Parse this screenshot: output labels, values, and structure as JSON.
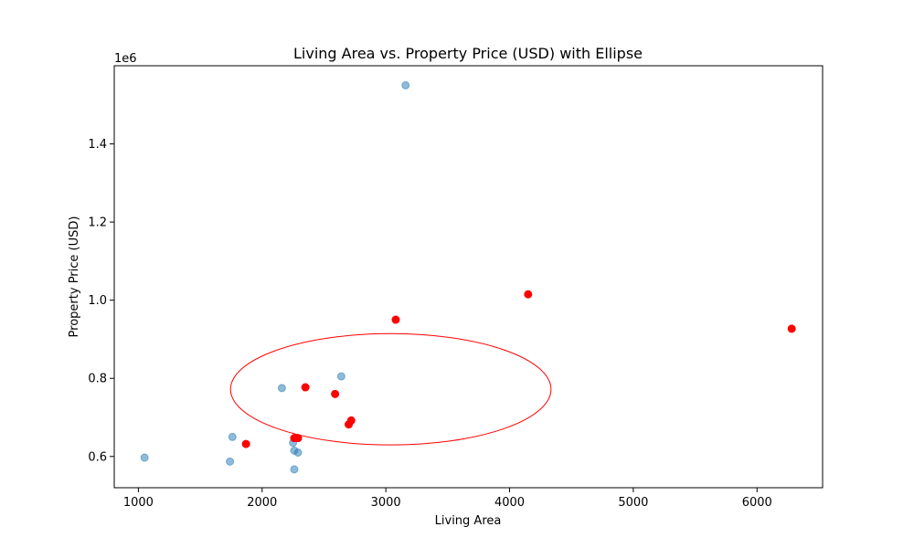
{
  "chart_data": {
    "type": "scatter",
    "title": "Living Area vs. Property Price (USD) with Ellipse",
    "xlabel": "Living Area",
    "ylabel": "Property Price (USD)",
    "y_offset_label": "1e6",
    "y_scale_factor": 1000000,
    "xlim": [
      805,
      6530
    ],
    "ylim": [
      520000,
      1600000
    ],
    "xticks": [
      1000,
      2000,
      3000,
      4000,
      5000,
      6000
    ],
    "xtick_labels": [
      "1000",
      "2000",
      "3000",
      "4000",
      "5000",
      "6000"
    ],
    "yticks": [
      600000,
      800000,
      1000000,
      1200000,
      1400000
    ],
    "ytick_labels": [
      "0.6",
      "0.8",
      "1.0",
      "1.2",
      "1.4"
    ],
    "grid": false,
    "series": [
      {
        "color": "#1f77b4",
        "alpha": 0.5,
        "points": [
          {
            "x": 3160,
            "y": 1550000
          },
          {
            "x": 2640,
            "y": 805000
          },
          {
            "x": 2160,
            "y": 775000
          },
          {
            "x": 1760,
            "y": 650000
          },
          {
            "x": 2250,
            "y": 635000
          },
          {
            "x": 2260,
            "y": 615000
          },
          {
            "x": 2290,
            "y": 610000
          },
          {
            "x": 1050,
            "y": 597000
          },
          {
            "x": 1740,
            "y": 587000
          },
          {
            "x": 2260,
            "y": 567000
          }
        ]
      },
      {
        "color": "#ff0000",
        "alpha": 1.0,
        "points": [
          {
            "x": 4150,
            "y": 1015000
          },
          {
            "x": 3080,
            "y": 950000
          },
          {
            "x": 6280,
            "y": 927000
          },
          {
            "x": 2350,
            "y": 777000
          },
          {
            "x": 2590,
            "y": 760000
          },
          {
            "x": 2720,
            "y": 692000
          },
          {
            "x": 2700,
            "y": 682000
          },
          {
            "x": 2260,
            "y": 647000
          },
          {
            "x": 2290,
            "y": 647000
          },
          {
            "x": 1870,
            "y": 632000
          }
        ]
      }
    ],
    "ellipse": {
      "center_x": 3040,
      "center_y": 772000,
      "width": 2590,
      "height": 285000,
      "edgecolor": "#ff0000"
    }
  }
}
